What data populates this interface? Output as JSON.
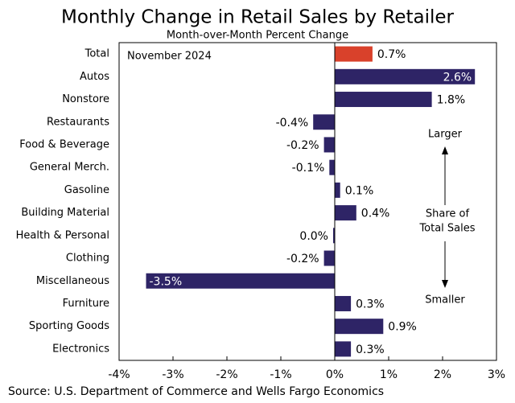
{
  "chart_data": {
    "type": "bar",
    "orientation": "horizontal",
    "title": "Monthly Change in Retail Sales by Retailer",
    "subtitle": "Month-over-Month Percent Change",
    "categories": [
      "Total",
      "Autos",
      "Nonstore",
      "Restaurants",
      "Food & Beverage",
      "General Merch.",
      "Gasoline",
      "Building Material",
      "Health & Personal",
      "Clothing",
      "Miscellaneous",
      "Furniture",
      "Sporting Goods",
      "Electronics"
    ],
    "values": [
      0.7,
      2.6,
      1.8,
      -0.4,
      -0.2,
      -0.1,
      0.1,
      0.4,
      -0.03,
      -0.2,
      -3.5,
      0.3,
      0.9,
      0.3
    ],
    "value_labels": [
      "0.7%",
      "2.6%",
      "1.8%",
      "-0.4%",
      "-0.2%",
      "-0.1%",
      "0.1%",
      "0.4%",
      "0.0%",
      "-0.2%",
      "-3.5%",
      "0.3%",
      "0.9%",
      "0.3%"
    ],
    "colors": [
      "#d9412b",
      "#2e2466",
      "#2e2466",
      "#2e2466",
      "#2e2466",
      "#2e2466",
      "#2e2466",
      "#2e2466",
      "#2e2466",
      "#2e2466",
      "#2e2466",
      "#2e2466",
      "#2e2466",
      "#2e2466"
    ],
    "xlim": [
      -4,
      3
    ],
    "xticks": [
      {
        "value": -4,
        "label": "-4%"
      },
      {
        "value": -3,
        "label": "-3%"
      },
      {
        "value": -2,
        "label": "-2%"
      },
      {
        "value": -1,
        "label": "-1%"
      },
      {
        "value": 0,
        "label": "0%"
      },
      {
        "value": 1,
        "label": "1%"
      },
      {
        "value": 2,
        "label": "2%"
      },
      {
        "value": 3,
        "label": "3%"
      }
    ],
    "annotations": [
      "November 2024",
      "Larger",
      "Share of",
      "Total Sales",
      "Smaller"
    ],
    "source": "Source: U.S. Department of Commerce and Wells Fargo Economics"
  }
}
